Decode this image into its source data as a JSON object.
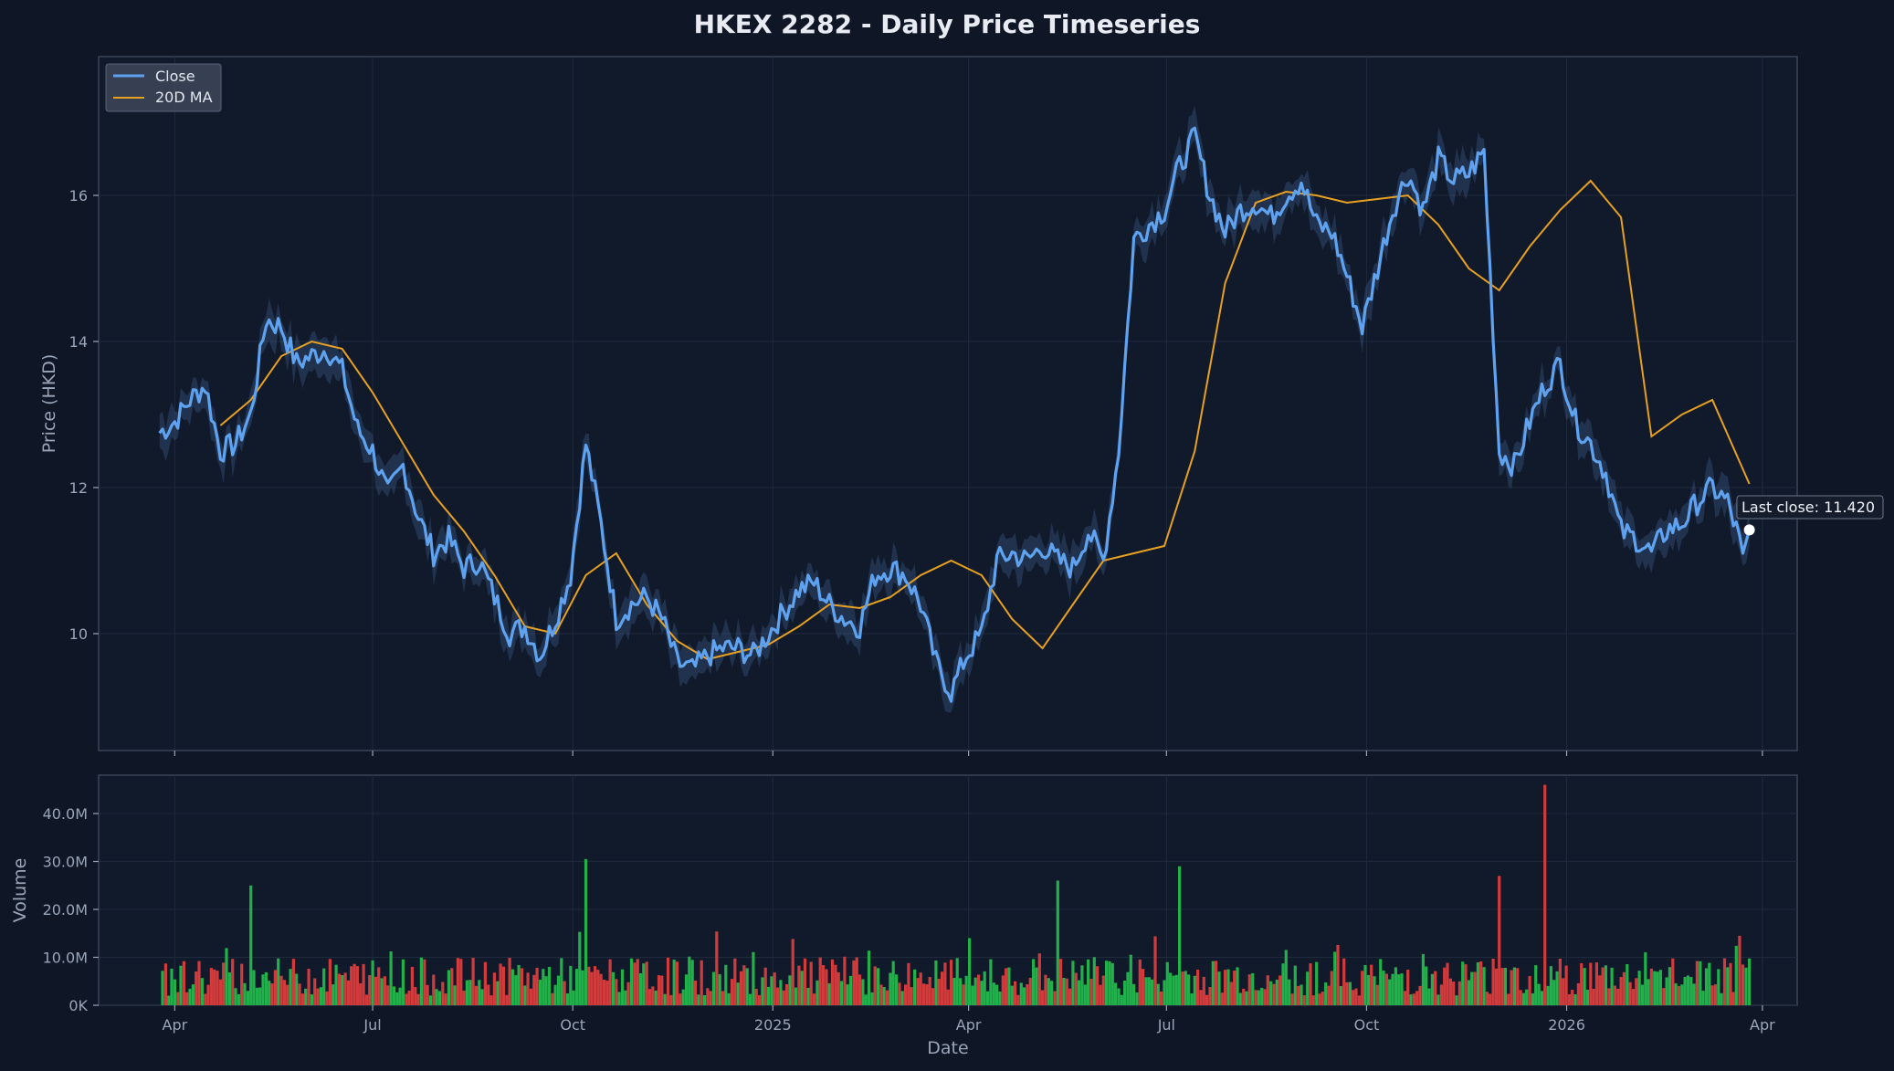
{
  "chart_data": {
    "type": "line",
    "title": "HKEX 2282 - Daily Price Timeseries",
    "price_panel": {
      "ylabel": "Price (HKD)",
      "yticks": [
        10,
        12,
        14,
        16
      ],
      "ylim": [
        8.4,
        17.9
      ],
      "legend": [
        "Close",
        "20D MA"
      ],
      "legend_loc": "upper left",
      "grid": true
    },
    "volume_panel": {
      "ylabel": "Volume",
      "yticks": [
        "0K",
        "10.0M",
        "20.0M",
        "30.0M",
        "40.0M"
      ],
      "ylim": [
        0,
        48000000
      ],
      "grid": true
    },
    "xlabel": "Date",
    "xticks": [
      "Apr",
      "Jul",
      "Oct",
      "2025",
      "Apr",
      "Jul",
      "Oct",
      "2026",
      "Apr"
    ],
    "xlim": [
      "2024-02-26",
      "2026-04-17"
    ],
    "annotation": "Last close: 11.420",
    "colors": {
      "close": "#5ea2f0",
      "ma": "#e8a020",
      "up": "#22b04a",
      "down": "#d23b3b"
    },
    "series": [
      {
        "name": "Close",
        "x": [
          "2024-03-25",
          "2024-04-01",
          "2024-04-08",
          "2024-04-15",
          "2024-04-22",
          "2024-04-29",
          "2024-05-06",
          "2024-05-13",
          "2024-05-20",
          "2024-05-27",
          "2024-06-03",
          "2024-06-10",
          "2024-06-17",
          "2024-06-24",
          "2024-07-01",
          "2024-07-08",
          "2024-07-15",
          "2024-07-22",
          "2024-07-29",
          "2024-08-05",
          "2024-08-12",
          "2024-08-19",
          "2024-08-26",
          "2024-09-02",
          "2024-09-09",
          "2024-09-16",
          "2024-09-23",
          "2024-09-30",
          "2024-10-07",
          "2024-10-14",
          "2024-10-21",
          "2024-10-28",
          "2024-11-04",
          "2024-11-11",
          "2024-11-18",
          "2024-11-25",
          "2024-12-02",
          "2024-12-09",
          "2024-12-16",
          "2024-12-23",
          "2024-12-30",
          "2025-01-06",
          "2025-01-13",
          "2025-01-20",
          "2025-01-27",
          "2025-02-03",
          "2025-02-10",
          "2025-02-17",
          "2025-02-24",
          "2025-03-03",
          "2025-03-10",
          "2025-03-17",
          "2025-03-24",
          "2025-03-31",
          "2025-04-07",
          "2025-04-14",
          "2025-04-21",
          "2025-04-28",
          "2025-05-05",
          "2025-05-12",
          "2025-05-19",
          "2025-05-26",
          "2025-06-02",
          "2025-06-09",
          "2025-06-16",
          "2025-06-23",
          "2025-06-30",
          "2025-07-07",
          "2025-07-14",
          "2025-07-21",
          "2025-07-28",
          "2025-08-04",
          "2025-08-11",
          "2025-08-18",
          "2025-08-25",
          "2025-09-01",
          "2025-09-08",
          "2025-09-15",
          "2025-09-22",
          "2025-09-29",
          "2025-10-06",
          "2025-10-13",
          "2025-10-20",
          "2025-10-27",
          "2025-11-03",
          "2025-11-10",
          "2025-11-17",
          "2025-11-24",
          "2025-12-01",
          "2025-12-08",
          "2025-12-15",
          "2025-12-22",
          "2025-12-29",
          "2026-01-05",
          "2026-01-12",
          "2026-01-19",
          "2026-01-26",
          "2026-02-02",
          "2026-02-09",
          "2026-02-16",
          "2026-02-23",
          "2026-03-02",
          "2026-03-09",
          "2026-03-16",
          "2026-03-20",
          "2026-03-23",
          "2026-03-26"
        ],
        "values": [
          12.75,
          12.9,
          13.2,
          13.4,
          12.5,
          12.6,
          13.0,
          14.3,
          14.2,
          13.7,
          13.8,
          13.9,
          13.6,
          12.8,
          12.5,
          11.9,
          12.3,
          11.6,
          11.1,
          11.3,
          10.9,
          11.0,
          10.5,
          10.0,
          10.1,
          9.7,
          10.2,
          10.8,
          12.6,
          11.5,
          10.2,
          10.4,
          10.5,
          10.2,
          9.6,
          9.5,
          9.7,
          9.8,
          9.8,
          9.7,
          10.0,
          10.3,
          10.6,
          10.7,
          10.4,
          10.2,
          10.1,
          10.8,
          10.9,
          10.8,
          10.4,
          9.6,
          9.2,
          9.7,
          10.0,
          11.0,
          11.1,
          11.0,
          11.2,
          11.0,
          10.9,
          11.4,
          11.0,
          12.5,
          15.4,
          15.6,
          15.8,
          16.4,
          16.8,
          16.0,
          15.5,
          15.8,
          15.9,
          15.7,
          16.0,
          16.2,
          15.6,
          15.5,
          14.9,
          14.2,
          15.0,
          15.8,
          16.3,
          15.8,
          16.5,
          16.2,
          16.3,
          16.6,
          12.5,
          12.3,
          12.9,
          13.4,
          13.7,
          12.9,
          12.6,
          12.2,
          11.4,
          11.3,
          11.1,
          11.42,
          11.5,
          11.8,
          12.0,
          11.8,
          11.42,
          11.1,
          11.42
        ]
      },
      {
        "name": "20D MA",
        "x": [
          "2024-04-22",
          "2024-05-06",
          "2024-05-20",
          "2024-06-03",
          "2024-06-17",
          "2024-07-01",
          "2024-07-15",
          "2024-07-29",
          "2024-08-12",
          "2024-08-26",
          "2024-09-09",
          "2024-09-23",
          "2024-10-07",
          "2024-10-21",
          "2024-11-04",
          "2024-11-18",
          "2024-12-02",
          "2024-12-16",
          "2024-12-30",
          "2025-01-13",
          "2025-01-27",
          "2025-02-10",
          "2025-02-24",
          "2025-03-10",
          "2025-03-24",
          "2025-04-07",
          "2025-04-21",
          "2025-05-05",
          "2025-05-19",
          "2025-06-02",
          "2025-06-16",
          "2025-06-30",
          "2025-07-14",
          "2025-07-28",
          "2025-08-11",
          "2025-08-25",
          "2025-09-08",
          "2025-09-22",
          "2025-10-06",
          "2025-10-20",
          "2025-11-03",
          "2025-11-17",
          "2025-12-01",
          "2025-12-15",
          "2025-12-29",
          "2026-01-12",
          "2026-01-26",
          "2026-02-09",
          "2026-02-23",
          "2026-03-09",
          "2026-03-26"
        ],
        "values": [
          12.85,
          13.2,
          13.8,
          14.0,
          13.9,
          13.3,
          12.6,
          11.9,
          11.4,
          10.8,
          10.1,
          10.0,
          10.8,
          11.1,
          10.4,
          9.9,
          9.65,
          9.75,
          9.85,
          10.1,
          10.4,
          10.35,
          10.5,
          10.8,
          11.0,
          10.8,
          10.2,
          9.8,
          10.4,
          11.0,
          11.1,
          11.2,
          12.5,
          14.8,
          15.9,
          16.05,
          16.0,
          15.9,
          15.95,
          16.0,
          15.6,
          15.0,
          14.7,
          15.3,
          15.8,
          16.2,
          15.7,
          12.7,
          13.0,
          13.2,
          12.05
        ]
      }
    ]
  }
}
